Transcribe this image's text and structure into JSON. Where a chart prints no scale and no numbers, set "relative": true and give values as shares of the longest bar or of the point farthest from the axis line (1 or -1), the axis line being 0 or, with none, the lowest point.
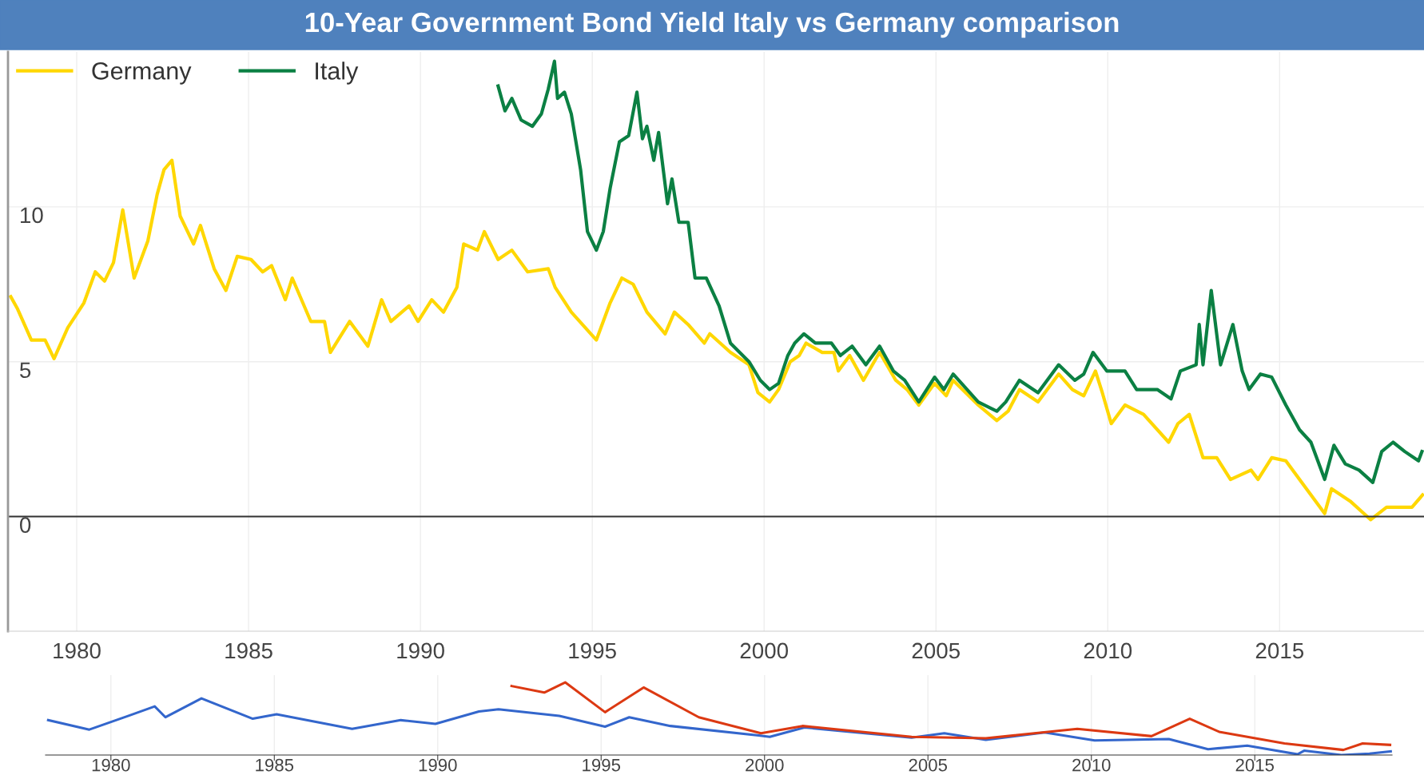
{
  "chart_data": [
    {
      "type": "line",
      "title": "10-Year Government Bond Yield Italy vs Germany comparison",
      "legend": "top left",
      "grid": true,
      "xlim": [
        1978,
        2019.2
      ],
      "xticks": [
        1980,
        1985,
        1990,
        1995,
        2000,
        2005,
        2010,
        2015
      ],
      "ylim": [
        -3.7,
        15
      ],
      "yticks": [
        0,
        5,
        10
      ],
      "ref_lines": [
        {
          "axis": "y",
          "value": 0,
          "color": "#333333"
        }
      ],
      "series": [
        {
          "name": "Germany",
          "color": "#ffd700",
          "x": [
            1978.08,
            1978.28,
            1978.68,
            1979.08,
            1979.34,
            1979.74,
            1980.21,
            1980.54,
            1980.81,
            1981.07,
            1981.34,
            1981.67,
            1982.07,
            1982.34,
            1982.54,
            1982.77,
            1983.01,
            1983.4,
            1983.6,
            1984.0,
            1984.34,
            1984.67,
            1985.07,
            1985.41,
            1985.67,
            1986.07,
            1986.27,
            1986.81,
            1987.21,
            1987.38,
            1987.94,
            1988.47,
            1988.87,
            1989.14,
            1989.67,
            1989.93,
            1990.33,
            1990.67,
            1991.06,
            1991.26,
            1991.66,
            1991.86,
            1992.26,
            1992.66,
            1993.12,
            1993.72,
            1993.92,
            1994.39,
            1995.12,
            1995.52,
            1995.86,
            1996.19,
            1996.59,
            1997.12,
            1997.39,
            1997.79,
            1998.26,
            1998.42,
            1999.02,
            1999.56,
            1999.82,
            2000.16,
            2000.42,
            2000.76,
            2001.02,
            2001.22,
            2001.69,
            2002.03,
            2002.16,
            2002.49,
            2002.89,
            2003.36,
            2003.83,
            2004.16,
            2004.5,
            2004.96,
            2005.3,
            2005.5,
            2006.23,
            2006.77,
            2007.1,
            2007.43,
            2007.97,
            2008.57,
            2008.97,
            2009.3,
            2009.64,
            2009.84,
            2010.1,
            2010.5,
            2011.04,
            2011.77,
            2012.04,
            2012.37,
            2012.77,
            2013.17,
            2013.57,
            2014.17,
            2014.37,
            2014.77,
            2015.18,
            2015.71,
            2016.31,
            2016.51,
            2017.05,
            2017.65,
            2018.11,
            2018.51,
            2018.85,
            2019.16
          ],
          "values": [
            7.1,
            6.7,
            5.7,
            5.7,
            5.1,
            6.1,
            6.9,
            7.9,
            7.6,
            8.2,
            9.9,
            7.7,
            8.9,
            10.4,
            11.2,
            11.5,
            9.7,
            8.8,
            9.4,
            8.0,
            7.3,
            8.4,
            8.3,
            7.9,
            8.1,
            7.0,
            7.7,
            6.3,
            6.3,
            5.3,
            6.3,
            5.5,
            7.0,
            6.3,
            6.8,
            6.3,
            7.0,
            6.6,
            7.4,
            8.8,
            8.6,
            9.2,
            8.3,
            8.6,
            7.9,
            8.0,
            7.4,
            6.6,
            5.7,
            6.9,
            7.7,
            7.5,
            6.6,
            5.9,
            6.6,
            6.2,
            5.6,
            5.9,
            5.3,
            4.9,
            4.0,
            3.7,
            4.1,
            5.0,
            5.2,
            5.6,
            5.3,
            5.3,
            4.7,
            5.2,
            4.4,
            5.3,
            4.4,
            4.1,
            3.6,
            4.3,
            3.9,
            4.4,
            3.6,
            3.1,
            3.4,
            4.1,
            3.7,
            4.6,
            4.1,
            3.9,
            4.7,
            4.0,
            3.0,
            3.6,
            3.3,
            2.4,
            3.0,
            3.3,
            1.9,
            1.9,
            1.2,
            1.5,
            1.2,
            1.9,
            1.8,
            1.0,
            0.1,
            0.9,
            0.5,
            -0.1,
            0.3,
            0.3,
            0.3,
            0.7
          ]
        },
        {
          "name": "Italy",
          "color": "#0b8043",
          "x": [
            1992.26,
            1992.46,
            1992.66,
            1992.93,
            1993.26,
            1993.52,
            1993.72,
            1993.9,
            1993.99,
            1994.19,
            1994.39,
            1994.66,
            1994.86,
            1995.12,
            1995.32,
            1995.52,
            1995.79,
            1996.06,
            1996.3,
            1996.46,
            1996.59,
            1996.79,
            1996.93,
            1997.19,
            1997.32,
            1997.52,
            1997.79,
            1997.99,
            1998.32,
            1998.69,
            1999.02,
            1999.56,
            1999.89,
            2000.16,
            2000.42,
            2000.69,
            2000.89,
            2001.16,
            2001.49,
            2001.96,
            2002.22,
            2002.56,
            2002.96,
            2003.36,
            2003.76,
            2004.09,
            2004.5,
            2004.96,
            2005.23,
            2005.5,
            2006.23,
            2006.77,
            2007.03,
            2007.43,
            2007.97,
            2008.57,
            2009.04,
            2009.3,
            2009.57,
            2009.97,
            2010.5,
            2010.84,
            2011.44,
            2011.84,
            2012.11,
            2012.57,
            2012.66,
            2012.77,
            2013.01,
            2013.28,
            2013.64,
            2013.91,
            2014.11,
            2014.44,
            2014.77,
            2015.18,
            2015.58,
            2015.91,
            2016.31,
            2016.58,
            2016.91,
            2017.31,
            2017.71,
            2017.97,
            2018.3,
            2018.64,
            2019.04,
            2019.14
          ],
          "values": [
            13.9,
            13.1,
            13.5,
            12.8,
            12.6,
            13.0,
            13.8,
            14.7,
            13.5,
            13.7,
            13.0,
            11.2,
            9.2,
            8.6,
            9.2,
            10.6,
            12.1,
            12.3,
            13.7,
            12.2,
            12.6,
            11.5,
            12.4,
            10.1,
            10.9,
            9.5,
            9.5,
            7.7,
            7.7,
            6.8,
            5.6,
            5.0,
            4.4,
            4.1,
            4.3,
            5.2,
            5.6,
            5.9,
            5.6,
            5.6,
            5.2,
            5.5,
            4.9,
            5.5,
            4.7,
            4.4,
            3.7,
            4.5,
            4.1,
            4.6,
            3.7,
            3.4,
            3.7,
            4.4,
            4.0,
            4.9,
            4.4,
            4.6,
            5.3,
            4.7,
            4.7,
            4.1,
            4.1,
            3.8,
            4.7,
            4.9,
            6.2,
            4.9,
            7.3,
            4.9,
            6.2,
            4.7,
            4.1,
            4.6,
            4.5,
            3.6,
            2.8,
            2.4,
            1.2,
            2.3,
            1.7,
            1.5,
            1.1,
            2.1,
            2.4,
            2.1,
            1.8,
            2.1
          ]
        }
      ]
    },
    {
      "type": "line",
      "relative": true,
      "grid": "x",
      "tick_labels": "x",
      "xlim": [
        1978,
        2019.2
      ],
      "xticks": [
        1980,
        1985,
        1990,
        1995,
        2000,
        2005,
        2010,
        2015
      ],
      "series": [
        {
          "color": "#3366cc",
          "x": [
            1978.08,
            1979.34,
            1980.54,
            1981.34,
            1981.67,
            1982.77,
            1984.34,
            1985.07,
            1987.38,
            1988.87,
            1989.93,
            1991.26,
            1991.86,
            1993.72,
            1995.12,
            1995.86,
            1997.12,
            1999.82,
            2000.16,
            2001.22,
            2004.5,
            2005.5,
            2006.77,
            2008.57,
            2010.1,
            2012.37,
            2013.57,
            2014.77,
            2016.31,
            2016.51,
            2017.65,
            2018.51,
            2019.16
          ],
          "values": [
            0.48,
            0.35,
            0.54,
            0.67,
            0.52,
            0.78,
            0.5,
            0.56,
            0.36,
            0.48,
            0.43,
            0.6,
            0.63,
            0.54,
            0.39,
            0.52,
            0.4,
            0.27,
            0.25,
            0.38,
            0.24,
            0.3,
            0.21,
            0.31,
            0.2,
            0.22,
            0.08,
            0.13,
            0.01,
            0.06,
            0.0,
            0.02,
            0.05
          ]
        },
        {
          "color": "#dc3912",
          "x": [
            1992.26,
            1993.26,
            1993.9,
            1995.12,
            1996.3,
            1997.99,
            1999.89,
            2001.16,
            2004.5,
            2006.77,
            2009.57,
            2011.84,
            2013.01,
            2013.91,
            2015.91,
            2017.71,
            2018.3,
            2019.14
          ],
          "values": [
            0.95,
            0.86,
            1.0,
            0.59,
            0.93,
            0.52,
            0.3,
            0.4,
            0.25,
            0.23,
            0.36,
            0.26,
            0.5,
            0.32,
            0.16,
            0.07,
            0.16,
            0.14
          ]
        }
      ]
    }
  ]
}
